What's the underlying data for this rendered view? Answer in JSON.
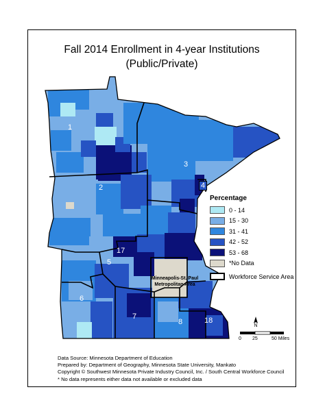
{
  "title_line1": "Fall 2014 Enrollment in 4-year Institutions",
  "title_line2": "(Public/Private)",
  "legend": {
    "title": "Percentage",
    "items": [
      {
        "label": "0 - 14",
        "color": "#aee9f4"
      },
      {
        "label": "15 - 30",
        "color": "#79aee6"
      },
      {
        "label": "31 - 41",
        "color": "#2f86de"
      },
      {
        "label": "42 - 52",
        "color": "#2653c3"
      },
      {
        "label": "53 - 68",
        "color": "#0b1178"
      },
      {
        "label": "*No Data",
        "color": "#ddd9cc"
      }
    ],
    "wsa_label": "Workforce Service Area"
  },
  "metro_label_line1": "Minneapolis-St. Paul",
  "metro_label_line2": "Metropolitan Area",
  "regions": [
    "1",
    "2",
    "3",
    "4",
    "5",
    "6",
    "7",
    "8",
    "17",
    "18"
  ],
  "scale": {
    "tick0": "0",
    "tick1": "25",
    "tick2": "50 Miles",
    "north": "N"
  },
  "footer": {
    "line1": "Data Source: Minnesota Department of Education",
    "line2": "Prepared by: Department of Geography, Minnesota State University, Mankato",
    "line3": "Copyright © Southwest Minnesota Private Industry Council, Inc.  / South Central Workforce Council",
    "line4": "* No data represents either data not available or excluded data"
  },
  "colors": {
    "c0": "#aee9f4",
    "c1": "#79aee6",
    "c2": "#2f86de",
    "c3": "#2653c3",
    "c4": "#0b1178",
    "nodata": "#ddd9cc"
  }
}
